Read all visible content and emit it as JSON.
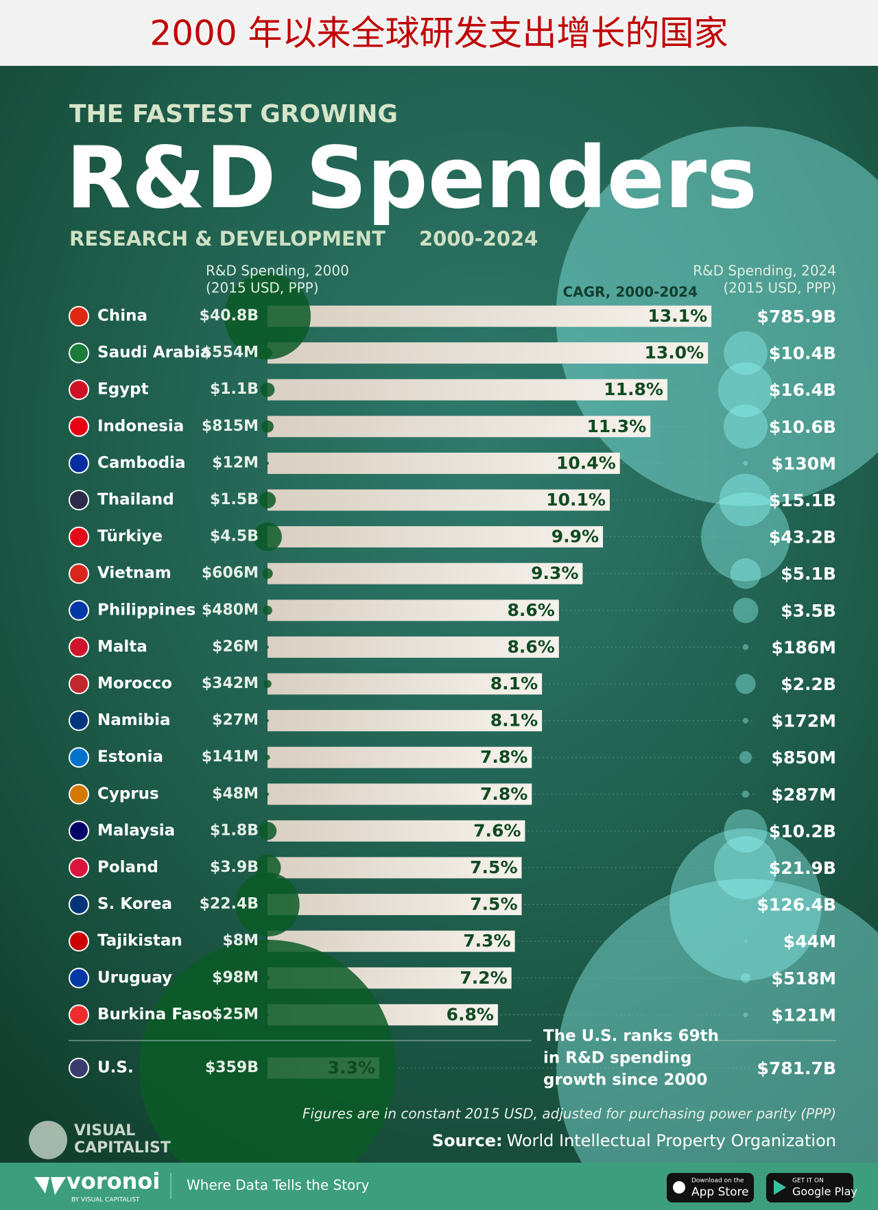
{
  "banner": "2000 年以来全球研发支出增长的国家",
  "chart_data": {
    "type": "bar",
    "kicker": "THE FASTEST GROWING",
    "title": "R&D Spenders",
    "subtitle": "RESEARCH & DEVELOPMENT",
    "period": "2000-2024",
    "unit": "(2015 USD, PPP)",
    "categories": [
      "China",
      "Saudi Arabia",
      "Egypt",
      "Indonesia",
      "Cambodia",
      "Thailand",
      "Türkiye",
      "Vietnam",
      "Philippines",
      "Malta",
      "Morocco",
      "Namibia",
      "Estonia",
      "Cyprus",
      "Malaysia",
      "Poland",
      "S. Korea",
      "Tajikistan",
      "Uruguay",
      "Burkina Faso",
      "U.S."
    ],
    "series": [
      {
        "name": "CAGR, 2000-2024",
        "color": "#e9e1d6",
        "values": [
          13.1,
          13.0,
          11.8,
          11.3,
          10.4,
          10.1,
          9.9,
          9.3,
          8.6,
          8.6,
          8.1,
          8.1,
          7.8,
          7.8,
          7.6,
          7.5,
          7.5,
          7.3,
          7.2,
          6.8,
          3.3
        ],
        "value_labels": [
          "13.1%",
          "13.0%",
          "11.8%",
          "11.3%",
          "10.4%",
          "10.1%",
          "9.9%",
          "9.3%",
          "8.6%",
          "8.6%",
          "8.1%",
          "8.1%",
          "7.8%",
          "7.8%",
          "7.6%",
          "7.5%",
          "7.5%",
          "7.3%",
          "7.2%",
          "6.8%",
          "3.3%"
        ]
      },
      {
        "name": "R&D Spending, 2000",
        "color": "#0b5a26",
        "values": [
          40800000000,
          554000000,
          1100000000,
          815000000,
          12000000,
          1500000000,
          4500000000,
          606000000,
          480000000,
          26000000,
          342000000,
          27000000,
          141000000,
          48000000,
          1800000000,
          3900000000,
          22400000000,
          8000000,
          98000000,
          25000000,
          359000000000
        ],
        "value_labels": [
          "$40.8B",
          "$554M",
          "$1.1B",
          "$815M",
          "$12M",
          "$1.5B",
          "$4.5B",
          "$606M",
          "$480M",
          "$26M",
          "$342M",
          "$27M",
          "$141M",
          "$48M",
          "$1.8B",
          "$3.9B",
          "$22.4B",
          "$8M",
          "$98M",
          "$25M",
          "$359B"
        ]
      },
      {
        "name": "R&D Spending, 2024",
        "color": "#8ff3f0",
        "values": [
          785900000000,
          10400000000,
          16400000000,
          10600000000,
          130000000,
          15100000000,
          43200000000,
          5100000000,
          3500000000,
          186000000,
          2200000000,
          172000000,
          850000000,
          287000000,
          10200000000,
          21900000000,
          126400000000,
          44000000,
          518000000,
          121000000,
          781700000000
        ],
        "value_labels": [
          "$785.9B",
          "$10.4B",
          "$16.4B",
          "$10.6B",
          "$130M",
          "$15.1B",
          "$43.2B",
          "$5.1B",
          "$3.5B",
          "$186M",
          "$2.2B",
          "$172M",
          "$850M",
          "$287M",
          "$10.2B",
          "$21.9B",
          "$126.4B",
          "$44M",
          "$518M",
          "$121M",
          "$781.7B"
        ]
      }
    ],
    "annotation": [
      "The U.S. ranks 69th",
      "in R&D spending",
      "growth since 2000"
    ],
    "note": "Figures are in constant 2015 USD, adjusted for purchasing power parity (PPP)",
    "source_label": "Source:",
    "source": "World Intellectual Property Organization"
  },
  "brand": {
    "line1": "VISUAL",
    "line2": "CAPITALIST"
  },
  "footer": {
    "logo": "voronoi",
    "logo_sub": "BY VISUAL CAPITALIST",
    "tagline": "Where Data Tells the Story",
    "app_store_small": "Download on the",
    "app_store": "App Store",
    "google_small": "GET IT ON",
    "google": "Google Play"
  }
}
